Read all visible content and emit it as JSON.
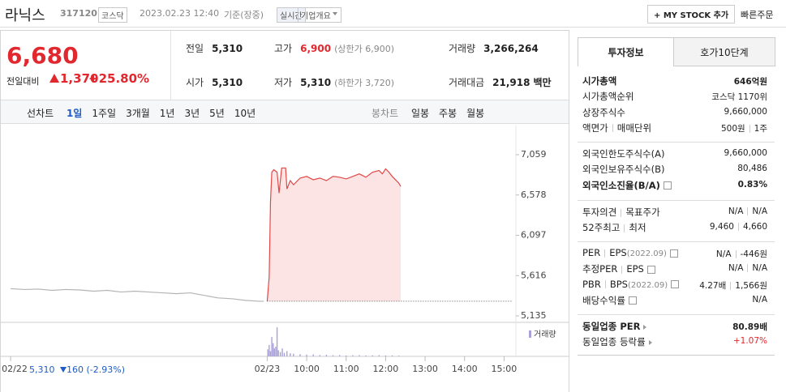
{
  "header": {
    "name": "라닉스",
    "code": "317120",
    "market": "코스닥",
    "datetime": "2023.02.23 12:40",
    "basis": "기준(장중)",
    "realtime": "실시간",
    "overview": "기업개요",
    "my_stock": "+ MY STOCK 추가",
    "quick_order": "빠른주문"
  },
  "price": {
    "current": "6,680",
    "change_label": "전일대비",
    "change": "1,370",
    "rate": "+25.80%"
  },
  "stats": [
    {
      "label": "전일",
      "value": "5,310"
    },
    {
      "label": "고가",
      "value": "6,900",
      "note": "(상한가 6,900)"
    },
    {
      "label": "거래량",
      "value": "3,266,264"
    },
    {
      "label": "시가",
      "value": "5,310"
    },
    {
      "label": "저가",
      "value": "5,310",
      "note": "(하한가 3,720)"
    },
    {
      "label": "거래대금",
      "value": "21,918",
      "unit": "백만"
    }
  ],
  "chart_tabs": {
    "line_label": "선차트",
    "line": [
      "1일",
      "1주일",
      "3개월",
      "1년",
      "3년",
      "5년",
      "10년"
    ],
    "candle_label": "봉차트",
    "candle": [
      "일봉",
      "주봉",
      "월봉"
    ]
  },
  "prev_day": {
    "close": "5,310",
    "change": "160",
    "rate": "(-2.93%)"
  },
  "chart_data": [
    {
      "type": "line",
      "xlim": [
        -10,
        768
      ],
      "ylim": [
        5058,
        7407
      ],
      "xticks": [
        {
          "value": 0,
          "label": "02/22"
        },
        {
          "value": 390,
          "label": "02/23"
        },
        {
          "value": 450,
          "label": "10:00"
        },
        {
          "value": 510,
          "label": "11:00"
        },
        {
          "value": 570,
          "label": "12:00"
        },
        {
          "value": 630,
          "label": "13:00"
        },
        {
          "value": 690,
          "label": "14:00"
        },
        {
          "value": 750,
          "label": "15:00"
        }
      ],
      "yticks": [
        {
          "value": 7059,
          "label": "7,059"
        },
        {
          "value": 6578,
          "label": "6,578"
        },
        {
          "value": 6097,
          "label": "6,097"
        },
        {
          "value": 5616,
          "label": "5,616"
        },
        {
          "value": 5135,
          "label": "5,135"
        }
      ],
      "grid": false,
      "reference_line": 5310,
      "series": [
        {
          "color": "#b4b4b4",
          "x": [
            0,
            21,
            42,
            63,
            84,
            105,
            126,
            147,
            168,
            189,
            210,
            231,
            252,
            273,
            294,
            315,
            336,
            357,
            378,
            385
          ],
          "values": [
            5460,
            5450,
            5455,
            5440,
            5450,
            5445,
            5430,
            5440,
            5420,
            5430,
            5420,
            5410,
            5400,
            5410,
            5380,
            5350,
            5340,
            5320,
            5310,
            5310
          ]
        },
        {
          "color": "#e04848",
          "fill": "#fde4e4",
          "x": [
            390,
            393,
            395,
            397,
            400,
            405,
            408,
            412,
            418,
            420,
            425,
            430,
            440,
            450,
            460,
            470,
            480,
            490,
            500,
            510,
            520,
            530,
            540,
            550,
            560,
            565,
            570,
            575,
            580,
            585,
            590,
            593
          ],
          "values": [
            5310,
            5600,
            6500,
            6850,
            6880,
            6850,
            6600,
            6900,
            6900,
            6650,
            6750,
            6700,
            6780,
            6800,
            6760,
            6780,
            6750,
            6800,
            6790,
            6770,
            6800,
            6830,
            6790,
            6850,
            6870,
            6830,
            6890,
            6850,
            6800,
            6760,
            6720,
            6680
          ]
        }
      ]
    },
    {
      "type": "bar",
      "ylim": [
        0,
        350000
      ],
      "series": [
        {
          "name": "거래량",
          "color": "#a9a2d9",
          "x": [
            391,
            393,
            395,
            397,
            399,
            401,
            403,
            405,
            407,
            410,
            413,
            416,
            420,
            425,
            430,
            440,
            450,
            460,
            470,
            480,
            490,
            500,
            510,
            520,
            530,
            540,
            550,
            560,
            570,
            580,
            590
          ],
          "values": [
            80000,
            130000,
            60000,
            220000,
            150000,
            90000,
            110000,
            330000,
            70000,
            50000,
            90000,
            40000,
            60000,
            35000,
            30000,
            25000,
            20000,
            22000,
            15000,
            18000,
            12000,
            15000,
            10000,
            12000,
            14000,
            9000,
            11000,
            13000,
            9000,
            10000,
            8000
          ]
        }
      ]
    }
  ],
  "info": {
    "tabs": [
      "투자정보",
      "호가10단계"
    ],
    "groups": [
      [
        {
          "label": [
            "시가총액"
          ],
          "value": [
            "646억원"
          ]
        },
        {
          "label": [
            "시가총액순위"
          ],
          "value": [
            "코스닥 1170위"
          ]
        },
        {
          "label": [
            "상장주식수"
          ],
          "value": [
            "9,660,000"
          ]
        },
        {
          "label": [
            "액면가",
            "매매단위"
          ],
          "value": [
            "500원",
            "1주"
          ]
        }
      ],
      [
        {
          "label": [
            "외국인한도주식수(A)"
          ],
          "value": [
            "9,660,000"
          ]
        },
        {
          "label": [
            "외국인보유주식수(B)"
          ],
          "value": [
            "80,486"
          ]
        },
        {
          "label": [
            "외국인소진율(B/A)"
          ],
          "value": [
            "0.83%"
          ]
        }
      ],
      [
        {
          "label": [
            "투자의견",
            "목표주가"
          ],
          "value": [
            "N/A",
            "N/A"
          ]
        },
        {
          "label": [
            "52주최고",
            "최저"
          ],
          "value": [
            "9,460",
            "4,660"
          ]
        }
      ],
      [
        {
          "label": [
            "PER",
            "EPS"
          ],
          "period": "(2022.09)",
          "value": [
            "N/A",
            "-446원"
          ]
        },
        {
          "label": [
            "추정PER",
            "EPS"
          ],
          "value": [
            "N/A",
            "N/A"
          ]
        },
        {
          "label": [
            "PBR",
            "BPS"
          ],
          "period": "(2022.09)",
          "value": [
            "4.27배",
            "1,566원"
          ]
        },
        {
          "label": [
            "배당수익률"
          ],
          "value": [
            "N/A"
          ]
        }
      ],
      [
        {
          "label": [
            "동일업종 PER"
          ],
          "value": [
            "80.89배"
          ]
        },
        {
          "label": [
            "동일업종 등락률"
          ],
          "value": [
            "+1.07%"
          ]
        }
      ]
    ]
  }
}
